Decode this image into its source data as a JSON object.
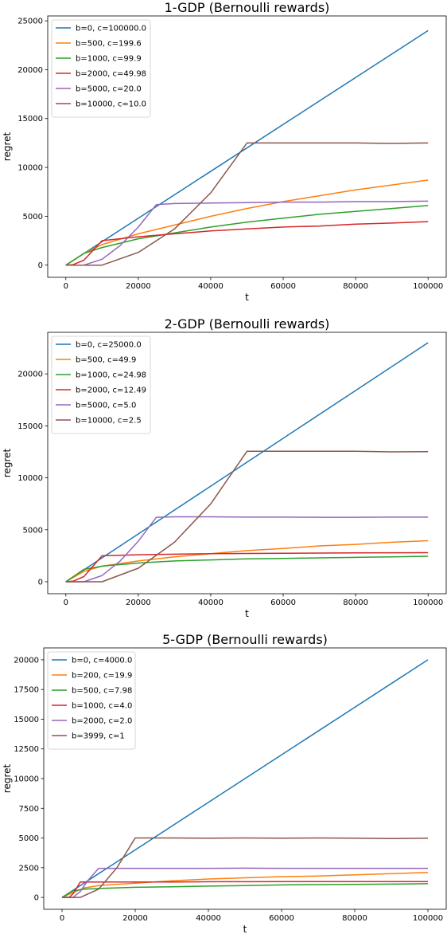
{
  "colors": [
    "#1f77b4",
    "#ff7f0e",
    "#2ca02c",
    "#d62728",
    "#9467bd",
    "#8c564b"
  ],
  "chart_data": [
    {
      "type": "line",
      "title": "1-GDP (Bernoulli rewards)",
      "xlabel": "t",
      "ylabel": "regret",
      "xlim": [
        -5000,
        105000
      ],
      "ylim": [
        -1250,
        25500
      ],
      "xticks": [
        0,
        20000,
        40000,
        60000,
        80000,
        100000
      ],
      "xtick_labels": [
        "0",
        "20000",
        "40000",
        "60000",
        "80000",
        "100000"
      ],
      "yticks": [
        0,
        5000,
        10000,
        15000,
        20000,
        25000
      ],
      "ytick_labels": [
        "0",
        "5000",
        "10000",
        "15000",
        "20000",
        "25000"
      ],
      "grid": false,
      "legend_position": "upper-left",
      "series": [
        {
          "name": "b=0, c=100000.0",
          "x": [
            0,
            100000
          ],
          "y": [
            0,
            24000
          ]
        },
        {
          "name": "b=500, c=199.6",
          "x": [
            0,
            5000,
            10000,
            20000,
            30000,
            40000,
            50000,
            60000,
            70000,
            80000,
            90000,
            100000
          ],
          "y": [
            0,
            1200,
            2100,
            3200,
            4100,
            5000,
            5800,
            6500,
            7100,
            7700,
            8200,
            8700
          ]
        },
        {
          "name": "b=1000, c=99.9",
          "x": [
            0,
            5000,
            10000,
            20000,
            30000,
            40000,
            50000,
            60000,
            70000,
            80000,
            90000,
            100000
          ],
          "y": [
            0,
            1200,
            1800,
            2700,
            3300,
            3900,
            4400,
            4800,
            5200,
            5500,
            5800,
            6100
          ]
        },
        {
          "name": "b=2000, c=49.98",
          "x": [
            0,
            2000,
            5000,
            10000,
            20000,
            30000,
            40000,
            50000,
            60000,
            70000,
            80000,
            90000,
            100000
          ],
          "y": [
            0,
            50,
            500,
            2500,
            2900,
            3200,
            3500,
            3700,
            3900,
            4000,
            4200,
            4300,
            4450
          ]
        },
        {
          "name": "b=5000, c=20.0",
          "x": [
            0,
            5000,
            10000,
            15000,
            20000,
            25000,
            30000,
            40000,
            50000,
            60000,
            70000,
            80000,
            90000,
            100000
          ],
          "y": [
            0,
            0,
            600,
            2000,
            3900,
            6200,
            6300,
            6350,
            6400,
            6450,
            6450,
            6500,
            6500,
            6550
          ]
        },
        {
          "name": "b=10000, c=10.0",
          "x": [
            0,
            10000,
            20000,
            30000,
            40000,
            50000,
            60000,
            70000,
            80000,
            90000,
            100000
          ],
          "y": [
            0,
            0,
            1300,
            3700,
            7400,
            12500,
            12500,
            12500,
            12500,
            12450,
            12500
          ]
        }
      ]
    },
    {
      "type": "line",
      "title": "2-GDP (Bernoulli rewards)",
      "xlabel": "t",
      "ylabel": "regret",
      "xlim": [
        -5000,
        105000
      ],
      "ylim": [
        -1150,
        24000
      ],
      "xticks": [
        0,
        20000,
        40000,
        60000,
        80000,
        100000
      ],
      "xtick_labels": [
        "0",
        "20000",
        "40000",
        "60000",
        "80000",
        "100000"
      ],
      "yticks": [
        0,
        5000,
        10000,
        15000,
        20000
      ],
      "ytick_labels": [
        "0",
        "5000",
        "10000",
        "15000",
        "20000"
      ],
      "grid": false,
      "legend_position": "upper-left",
      "series": [
        {
          "name": "b=0, c=25000.0",
          "x": [
            0,
            100000
          ],
          "y": [
            0,
            23000
          ]
        },
        {
          "name": "b=500, c=49.9",
          "x": [
            0,
            5000,
            10000,
            20000,
            30000,
            40000,
            50000,
            60000,
            70000,
            80000,
            90000,
            100000
          ],
          "y": [
            0,
            1000,
            1500,
            2000,
            2400,
            2700,
            3000,
            3200,
            3450,
            3600,
            3800,
            3950
          ]
        },
        {
          "name": "b=1000, c=24.98",
          "x": [
            0,
            5000,
            10000,
            20000,
            30000,
            40000,
            50000,
            60000,
            70000,
            80000,
            90000,
            100000
          ],
          "y": [
            0,
            1200,
            1500,
            1800,
            2000,
            2100,
            2200,
            2250,
            2300,
            2350,
            2400,
            2450
          ]
        },
        {
          "name": "b=2000, c=12.49",
          "x": [
            0,
            2000,
            5000,
            10000,
            20000,
            30000,
            40000,
            50000,
            60000,
            70000,
            80000,
            90000,
            100000
          ],
          "y": [
            0,
            50,
            500,
            2500,
            2600,
            2650,
            2700,
            2720,
            2740,
            2760,
            2780,
            2790,
            2800
          ]
        },
        {
          "name": "b=5000, c=5.0",
          "x": [
            0,
            5000,
            10000,
            15000,
            20000,
            25000,
            30000,
            40000,
            50000,
            60000,
            70000,
            80000,
            90000,
            100000
          ],
          "y": [
            0,
            0,
            600,
            2000,
            3900,
            6200,
            6250,
            6250,
            6220,
            6220,
            6200,
            6200,
            6220,
            6220
          ]
        },
        {
          "name": "b=10000, c=2.5",
          "x": [
            0,
            10000,
            20000,
            30000,
            40000,
            50000,
            60000,
            70000,
            80000,
            90000,
            100000
          ],
          "y": [
            0,
            0,
            1300,
            3800,
            7500,
            12550,
            12550,
            12550,
            12550,
            12500,
            12520
          ]
        }
      ]
    },
    {
      "type": "line",
      "title": "5-GDP (Bernoulli rewards)",
      "xlabel": "t",
      "ylabel": "regret",
      "xlim": [
        -5000,
        105000
      ],
      "ylim": [
        -1000,
        21000
      ],
      "xticks": [
        0,
        20000,
        40000,
        60000,
        80000,
        100000
      ],
      "xtick_labels": [
        "0",
        "20000",
        "40000",
        "60000",
        "80000",
        "100000"
      ],
      "yticks": [
        0,
        2500,
        5000,
        7500,
        10000,
        12500,
        15000,
        17500,
        20000
      ],
      "ytick_labels": [
        "0",
        "2500",
        "5000",
        "7500",
        "10000",
        "12500",
        "15000",
        "17500",
        "20000"
      ],
      "grid": false,
      "legend_position": "upper-left",
      "series": [
        {
          "name": "b=0, c=4000.0",
          "x": [
            0,
            100000
          ],
          "y": [
            0,
            20000
          ]
        },
        {
          "name": "b=200, c=19.9",
          "x": [
            0,
            3000,
            6000,
            10000,
            20000,
            30000,
            40000,
            50000,
            60000,
            70000,
            80000,
            90000,
            100000
          ],
          "y": [
            0,
            400,
            800,
            1000,
            1200,
            1400,
            1550,
            1650,
            1750,
            1800,
            1900,
            2000,
            2100
          ]
        },
        {
          "name": "b=500, c=7.98",
          "x": [
            0,
            3000,
            6000,
            10000,
            20000,
            30000,
            40000,
            50000,
            60000,
            70000,
            80000,
            90000,
            100000
          ],
          "y": [
            0,
            550,
            700,
            750,
            850,
            900,
            950,
            1000,
            1050,
            1080,
            1100,
            1120,
            1150
          ]
        },
        {
          "name": "b=1000, c=4.0",
          "x": [
            0,
            2000,
            3000,
            5000,
            10000,
            20000,
            30000,
            40000,
            50000,
            60000,
            70000,
            80000,
            90000,
            100000
          ],
          "y": [
            0,
            20,
            300,
            1300,
            1300,
            1300,
            1300,
            1320,
            1320,
            1330,
            1330,
            1330,
            1330,
            1330
          ]
        },
        {
          "name": "b=2000, c=2.0",
          "x": [
            0,
            3000,
            5000,
            7000,
            10000,
            20000,
            30000,
            40000,
            50000,
            60000,
            70000,
            80000,
            90000,
            100000
          ],
          "y": [
            0,
            0,
            500,
            1400,
            2450,
            2450,
            2450,
            2450,
            2460,
            2450,
            2450,
            2450,
            2450,
            2450
          ]
        },
        {
          "name": "b=3999, c=1",
          "x": [
            0,
            5000,
            10000,
            15000,
            20000,
            30000,
            40000,
            50000,
            60000,
            70000,
            80000,
            90000,
            100000
          ],
          "y": [
            0,
            0,
            700,
            2500,
            5000,
            5000,
            4980,
            5000,
            4980,
            5000,
            4980,
            4950,
            4980
          ]
        }
      ]
    }
  ]
}
